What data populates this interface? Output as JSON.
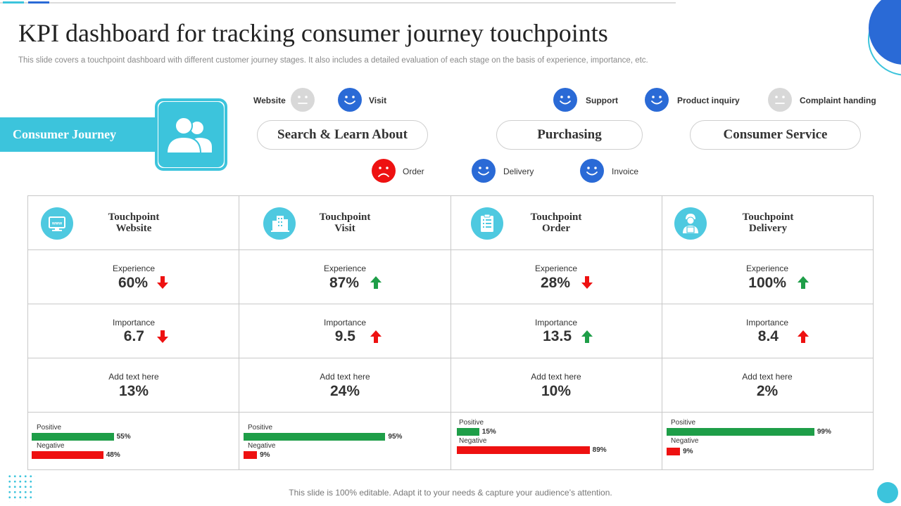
{
  "title": "KPI dashboard for tracking consumer journey touchpoints",
  "subtitle": "This slide covers a touchpoint dashboard with different customer journey stages. It also includes a detailed evaluation of each stage on the basis of experience, importance, etc.",
  "journey_label": "Consumer Journey",
  "stages": [
    "Search & Learn About",
    "Purchasing",
    "Consumer Service"
  ],
  "smileys": {
    "website": {
      "label": "Website",
      "mood": "neutral"
    },
    "visit": {
      "label": "Visit",
      "mood": "happy"
    },
    "support": {
      "label": "Support",
      "mood": "happy"
    },
    "product_inquiry": {
      "label": "Product inquiry",
      "mood": "happy"
    },
    "complaint": {
      "label": "Complaint handing",
      "mood": "neutral"
    },
    "order": {
      "label": "Order",
      "mood": "sad"
    },
    "delivery": {
      "label": "Delivery",
      "mood": "happy"
    },
    "invoice": {
      "label": "Invoice",
      "mood": "happy"
    }
  },
  "colors": {
    "accent": "#3cc4dc",
    "blue": "#2a6ad6",
    "positive": "#1e9e48",
    "negative": "#ee1111",
    "neutral": "#d8d8d8"
  },
  "touchpoints": [
    {
      "heading1": "Touchpoint",
      "heading2": "Website",
      "icon": "www-icon",
      "experience_label": "Experience",
      "experience": "60%",
      "experience_trend": "down-red",
      "importance_label": "Importance",
      "importance": "6.7",
      "importance_trend": "down-red",
      "extra_label": "Add text here",
      "extra": "13%",
      "positive_label": "Positive",
      "positive": 55,
      "positive_text": "55%",
      "negative_label": "Negative",
      "negative": 48,
      "negative_text": "48%"
    },
    {
      "heading1": "Touchpoint",
      "heading2": "Visit",
      "icon": "building-icon",
      "experience_label": "Experience",
      "experience": "87%",
      "experience_trend": "up-green",
      "importance_label": "Importance",
      "importance": "9.5",
      "importance_trend": "up-red",
      "extra_label": "Add text here",
      "extra": "24%",
      "positive_label": "Positive",
      "positive": 95,
      "positive_text": "95%",
      "negative_label": "Negative",
      "negative": 9,
      "negative_text": "9%"
    },
    {
      "heading1": "Touchpoint",
      "heading2": "Order",
      "icon": "clipboard-icon",
      "experience_label": "Experience",
      "experience": "28%",
      "experience_trend": "down-red",
      "importance_label": "Importance",
      "importance": "13.5",
      "importance_trend": "up-green",
      "extra_label": "Add text here",
      "extra": "10%",
      "positive_label": "Positive",
      "positive": 15,
      "positive_text": "15%",
      "negative_label": "Negative",
      "negative": 89,
      "negative_text": "89%"
    },
    {
      "heading1": "Touchpoint",
      "heading2": "Delivery",
      "icon": "delivery-person-icon",
      "experience_label": "Experience",
      "experience": "100%",
      "experience_trend": "up-green",
      "importance_label": "Importance",
      "importance": "8.4",
      "importance_trend": "up-red",
      "extra_label": "Add text here",
      "extra": "2%",
      "positive_label": "Positive",
      "positive": 99,
      "positive_text": "99%",
      "negative_label": "Negative",
      "negative": 9,
      "negative_text": "9%"
    }
  ],
  "footer": "This slide is 100% editable. Adapt it to your needs & capture your audience’s attention."
}
